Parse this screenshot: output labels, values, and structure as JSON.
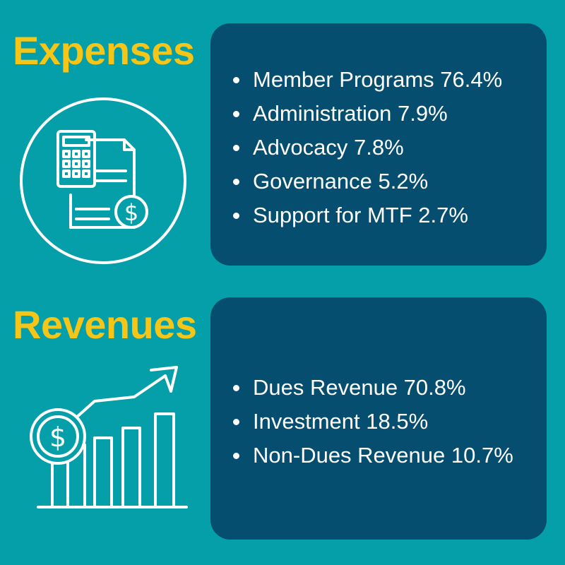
{
  "expenses": {
    "title": "Expenses",
    "icon": "calculator-invoice-dollar-icon",
    "items": [
      {
        "label": "Member Programs 76.4%"
      },
      {
        "label": "Administration 7.9%"
      },
      {
        "label": "Advocacy 7.8%"
      },
      {
        "label": "Governance 5.2%"
      },
      {
        "label": "Support for MTF 2.7%"
      }
    ]
  },
  "revenues": {
    "title": "Revenues",
    "icon": "growth-chart-dollar-icon",
    "items": [
      {
        "label": "Dues Revenue 70.8%"
      },
      {
        "label": "Investment 18.5%"
      },
      {
        "label": "Non-Dues Revenue 10.7%"
      }
    ]
  },
  "colors": {
    "background": "#049fa8",
    "panel": "#054e6f",
    "heading": "#f5c518",
    "text": "#ffffff"
  }
}
